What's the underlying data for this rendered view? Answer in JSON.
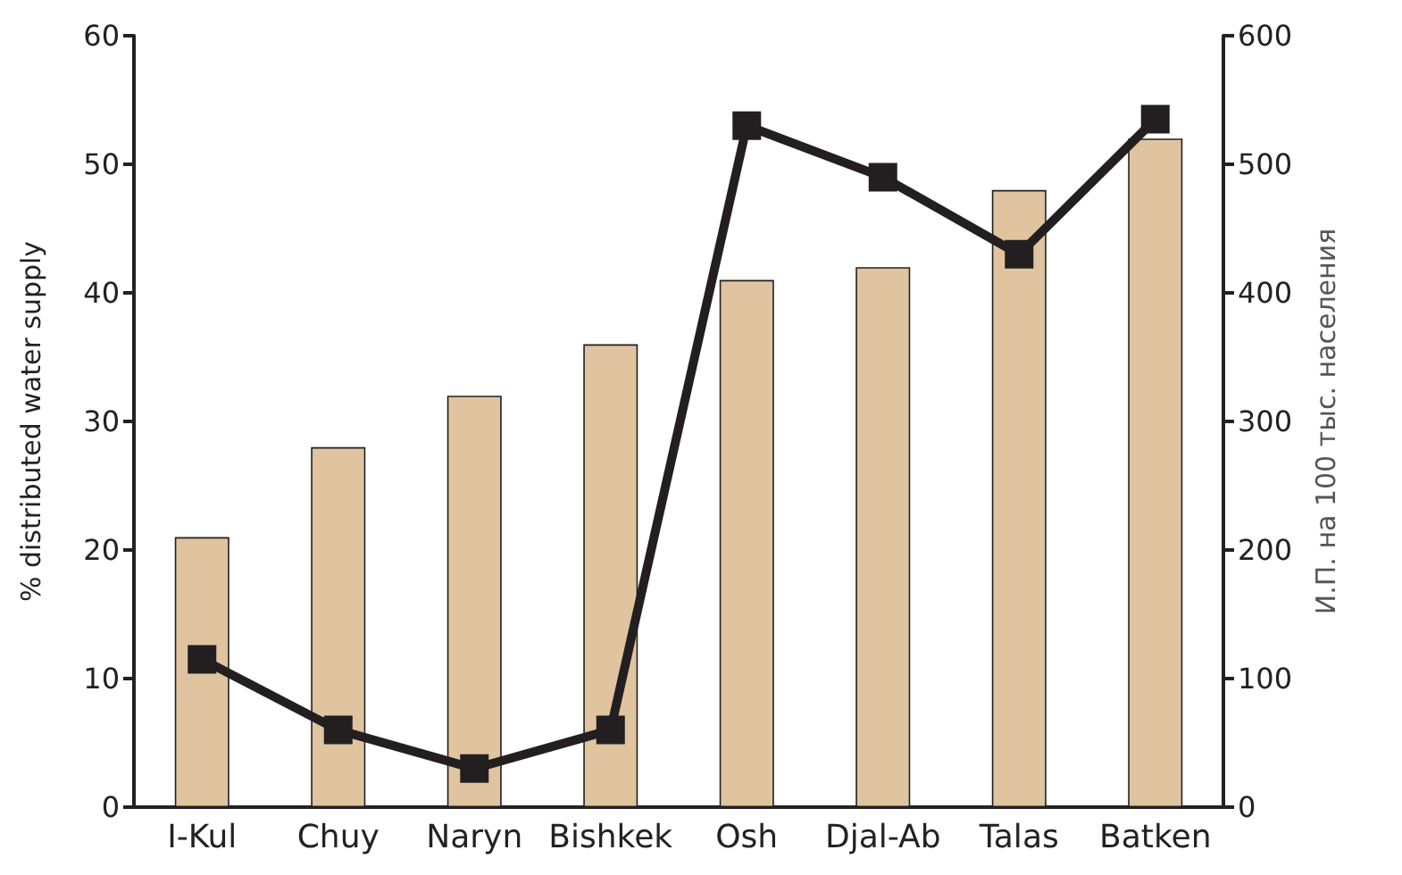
{
  "chart_data": {
    "type": "bar",
    "categories": [
      "I-Kul",
      "Chuy",
      "Naryn",
      "Bishkek",
      "Osh",
      "Djal-Ab",
      "Talas",
      "Batken"
    ],
    "ylabel": "% distributed water supply",
    "y2label": "И.П. на 100 тыс. населения",
    "ylim": [
      0,
      60
    ],
    "yticks": [
      0,
      10,
      20,
      30,
      40,
      50,
      60
    ],
    "y2lim": [
      0,
      600
    ],
    "y2ticks": [
      0,
      100,
      200,
      300,
      400,
      500,
      600
    ],
    "grid": false,
    "series": [
      {
        "color": "#e0c4a0",
        "values": [
          21,
          28,
          32,
          36,
          41,
          42,
          48,
          52
        ]
      },
      {
        "type": "line",
        "axis": "y2",
        "color": "#231f20",
        "marker": "square",
        "line_style": "solid",
        "values": [
          115,
          60,
          30,
          60,
          530,
          490,
          430,
          535
        ]
      }
    ]
  }
}
